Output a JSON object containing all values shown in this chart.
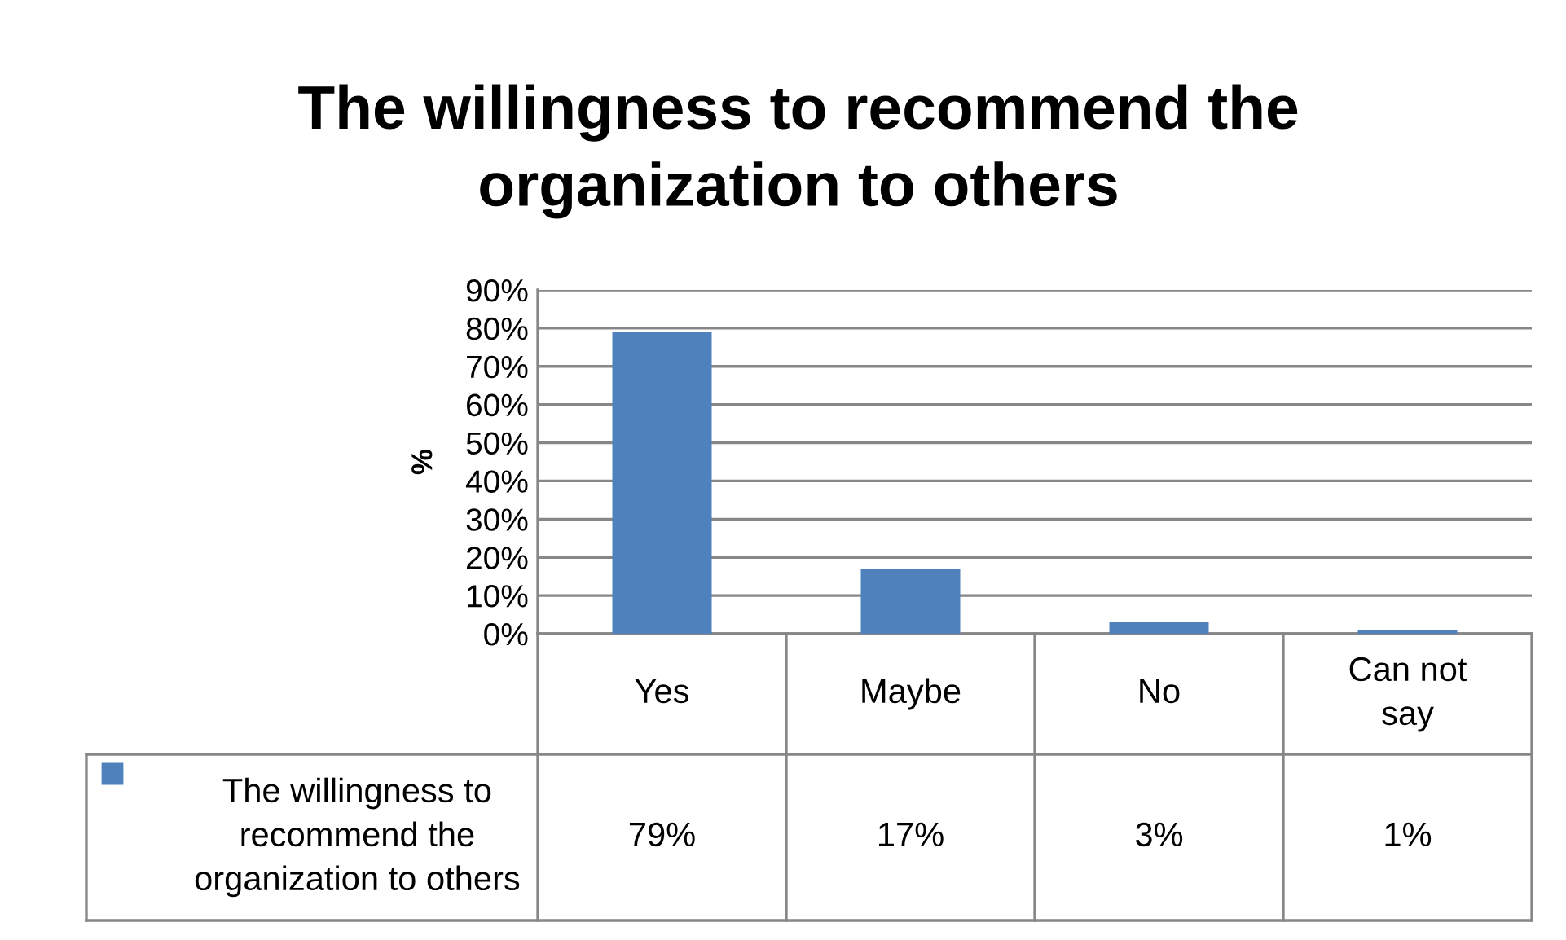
{
  "chart_data": {
    "type": "bar",
    "title": "The willingness to recommend the organization to others",
    "ylabel": "%",
    "categories": [
      "Yes",
      "Maybe",
      "No",
      "Can not say"
    ],
    "series": [
      {
        "name": "The willingness to recommend the organization to others",
        "color": "#4f81bd",
        "values": [
          79,
          17,
          3,
          1
        ],
        "value_labels": [
          "79%",
          "17%",
          "3%",
          "1%"
        ]
      }
    ],
    "ylim": [
      0,
      90
    ],
    "yticks": [
      {
        "value": 0,
        "label": "0%"
      },
      {
        "value": 10,
        "label": "10%"
      },
      {
        "value": 20,
        "label": "20%"
      },
      {
        "value": 30,
        "label": "30%"
      },
      {
        "value": 40,
        "label": "40%"
      },
      {
        "value": 50,
        "label": "50%"
      },
      {
        "value": 60,
        "label": "60%"
      },
      {
        "value": 70,
        "label": "70%"
      },
      {
        "value": 80,
        "label": "80%"
      },
      {
        "value": 90,
        "label": "90%"
      }
    ],
    "grid": "y",
    "legend": "bottom"
  }
}
